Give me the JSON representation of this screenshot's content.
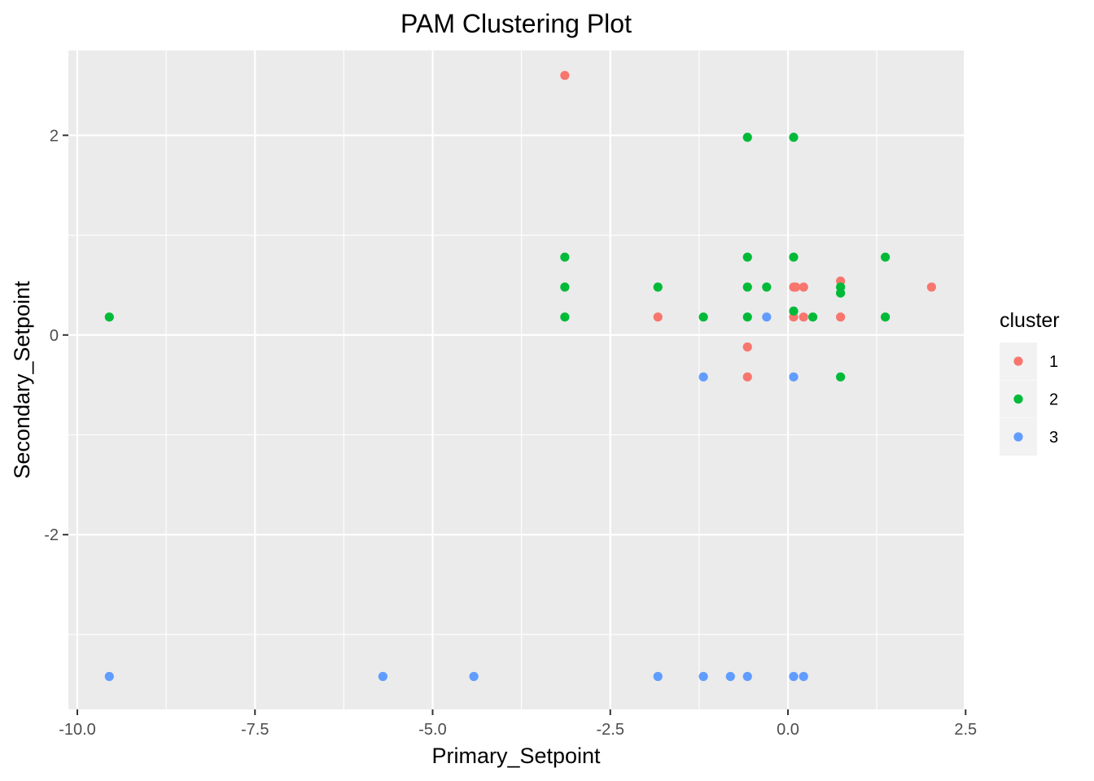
{
  "chart_data": {
    "type": "scatter",
    "title": "PAM Clustering Plot",
    "xlabel": "Primary_Setpoint",
    "ylabel": "Secondary_Setpoint",
    "xlim": [
      -10.0,
      2.6
    ],
    "ylim": [
      -3.75,
      2.85
    ],
    "x_ticks": [
      -10.0,
      -7.5,
      -5.0,
      -2.5,
      0.0,
      2.5
    ],
    "x_tick_labels": [
      "-10.0",
      "-7.5",
      "-5.0",
      "-2.5",
      "0.0",
      "2.5"
    ],
    "y_ticks": [
      -2,
      0,
      2
    ],
    "y_tick_labels": [
      "-2",
      "0",
      "2"
    ],
    "grid": true,
    "legend": {
      "title": "cluster",
      "position": "right"
    },
    "series": [
      {
        "name": "1",
        "color": "#F8766D",
        "points": [
          [
            -3.14,
            2.6
          ],
          [
            -1.83,
            0.18
          ],
          [
            -0.57,
            -0.12
          ],
          [
            -0.57,
            -0.42
          ],
          [
            0.08,
            0.48
          ],
          [
            0.08,
            0.18
          ],
          [
            0.11,
            0.48
          ],
          [
            0.22,
            0.48
          ],
          [
            0.22,
            0.18
          ],
          [
            0.74,
            0.54
          ],
          [
            0.74,
            0.18
          ],
          [
            2.02,
            0.48
          ]
        ]
      },
      {
        "name": "2",
        "color": "#00BA38",
        "points": [
          [
            -9.55,
            0.18
          ],
          [
            -3.14,
            0.78
          ],
          [
            -3.14,
            0.48
          ],
          [
            -3.14,
            0.18
          ],
          [
            -1.83,
            0.48
          ],
          [
            -1.19,
            0.18
          ],
          [
            -0.57,
            1.98
          ],
          [
            -0.57,
            0.78
          ],
          [
            -0.57,
            0.48
          ],
          [
            -0.57,
            0.18
          ],
          [
            -0.3,
            0.48
          ],
          [
            0.08,
            1.98
          ],
          [
            0.08,
            0.78
          ],
          [
            0.08,
            0.24
          ],
          [
            0.35,
            0.18
          ],
          [
            0.74,
            0.48
          ],
          [
            0.74,
            0.42
          ],
          [
            0.74,
            -0.42
          ],
          [
            1.37,
            0.78
          ],
          [
            1.37,
            0.18
          ]
        ]
      },
      {
        "name": "3",
        "color": "#619CFF",
        "points": [
          [
            -9.55,
            -3.42
          ],
          [
            -5.7,
            -3.42
          ],
          [
            -4.42,
            -3.42
          ],
          [
            -1.83,
            -3.42
          ],
          [
            -1.19,
            -3.42
          ],
          [
            -1.19,
            -0.42
          ],
          [
            -0.81,
            -3.42
          ],
          [
            -0.57,
            -3.42
          ],
          [
            -0.3,
            0.18
          ],
          [
            0.08,
            -0.42
          ],
          [
            0.08,
            -3.42
          ],
          [
            0.22,
            -3.42
          ]
        ]
      }
    ]
  }
}
